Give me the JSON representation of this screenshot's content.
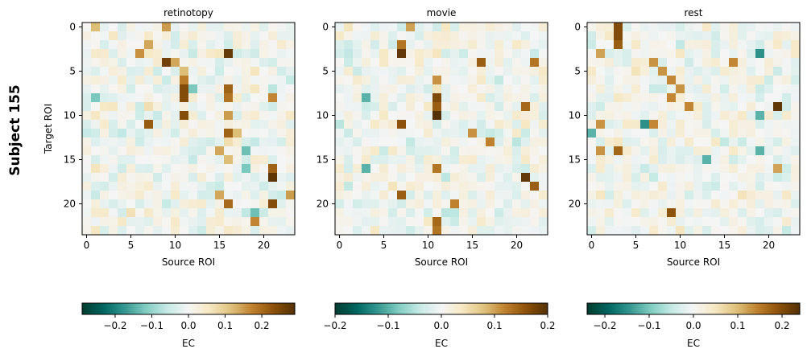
{
  "figure": {
    "row_label": "Subject 155"
  },
  "chart_data": [
    {
      "type": "heatmap",
      "title": "retinotopy",
      "xlabel": "Source ROI",
      "ylabel": "Target ROI",
      "n_rois": 24,
      "x_ticks": [
        0,
        5,
        10,
        15,
        20
      ],
      "y_ticks": [
        0,
        5,
        10,
        15,
        20
      ],
      "colorbar": {
        "label": "EC",
        "vmin": -0.29,
        "vmax": 0.29,
        "ticks": [
          -0.2,
          -0.1,
          0.0,
          0.1,
          0.2
        ],
        "tick_labels": [
          "−0.2",
          "−0.1",
          "0.0",
          "0.1",
          "0.2"
        ]
      },
      "cmap": "BrBG_r",
      "strong_cells": [
        {
          "row": 0,
          "col": 1,
          "value": 0.12
        },
        {
          "row": 0,
          "col": 9,
          "value": 0.15
        },
        {
          "row": 2,
          "col": 7,
          "value": 0.14
        },
        {
          "row": 3,
          "col": 6,
          "value": 0.16
        },
        {
          "row": 3,
          "col": 16,
          "value": 0.27
        },
        {
          "row": 4,
          "col": 9,
          "value": 0.26
        },
        {
          "row": 4,
          "col": 10,
          "value": 0.14
        },
        {
          "row": 5,
          "col": 11,
          "value": 0.12
        },
        {
          "row": 6,
          "col": 11,
          "value": 0.18
        },
        {
          "row": 7,
          "col": 11,
          "value": 0.24
        },
        {
          "row": 7,
          "col": 16,
          "value": 0.21
        },
        {
          "row": 8,
          "col": 11,
          "value": 0.24
        },
        {
          "row": 8,
          "col": 16,
          "value": 0.19
        },
        {
          "row": 8,
          "col": 21,
          "value": 0.17
        },
        {
          "row": 10,
          "col": 11,
          "value": 0.24
        },
        {
          "row": 10,
          "col": 16,
          "value": 0.15
        },
        {
          "row": 11,
          "col": 7,
          "value": 0.22
        },
        {
          "row": 12,
          "col": 16,
          "value": 0.21
        },
        {
          "row": 12,
          "col": 17,
          "value": 0.12
        },
        {
          "row": 14,
          "col": 15,
          "value": 0.14
        },
        {
          "row": 15,
          "col": 16,
          "value": 0.12
        },
        {
          "row": 16,
          "col": 21,
          "value": 0.21
        },
        {
          "row": 17,
          "col": 21,
          "value": 0.28
        },
        {
          "row": 19,
          "col": 15,
          "value": 0.14
        },
        {
          "row": 19,
          "col": 23,
          "value": 0.15
        },
        {
          "row": 20,
          "col": 16,
          "value": 0.2
        },
        {
          "row": 20,
          "col": 21,
          "value": 0.24
        },
        {
          "row": 22,
          "col": 19,
          "value": 0.17
        },
        {
          "row": 14,
          "col": 18,
          "value": -0.13
        },
        {
          "row": 16,
          "col": 18,
          "value": -0.12
        },
        {
          "row": 21,
          "col": 19,
          "value": -0.13
        },
        {
          "row": 8,
          "col": 1,
          "value": -0.12
        },
        {
          "row": 7,
          "col": 12,
          "value": -0.12
        }
      ],
      "seed": 155
    },
    {
      "type": "heatmap",
      "title": "movie",
      "xlabel": "Source ROI",
      "ylabel": "",
      "n_rois": 24,
      "x_ticks": [
        0,
        5,
        10,
        15,
        20
      ],
      "y_ticks": [
        0,
        5,
        10,
        15,
        20
      ],
      "colorbar": {
        "label": "EC",
        "vmin": -0.2,
        "vmax": 0.2,
        "ticks": [
          -0.2,
          -0.1,
          0.0,
          0.1,
          0.2
        ],
        "tick_labels": [
          "−0.2",
          "−0.1",
          "0.0",
          "0.1",
          "0.2"
        ]
      },
      "cmap": "BrBG_r",
      "strong_cells": [
        {
          "row": 0,
          "col": 8,
          "value": 0.1
        },
        {
          "row": 2,
          "col": 7,
          "value": 0.13
        },
        {
          "row": 3,
          "col": 7,
          "value": 0.19
        },
        {
          "row": 4,
          "col": 16,
          "value": 0.15
        },
        {
          "row": 4,
          "col": 22,
          "value": 0.13
        },
        {
          "row": 6,
          "col": 11,
          "value": 0.11
        },
        {
          "row": 8,
          "col": 11,
          "value": 0.17
        },
        {
          "row": 9,
          "col": 11,
          "value": 0.15
        },
        {
          "row": 9,
          "col": 21,
          "value": 0.14
        },
        {
          "row": 10,
          "col": 11,
          "value": 0.2
        },
        {
          "row": 11,
          "col": 7,
          "value": 0.16
        },
        {
          "row": 12,
          "col": 15,
          "value": 0.11
        },
        {
          "row": 13,
          "col": 17,
          "value": 0.12
        },
        {
          "row": 16,
          "col": 11,
          "value": 0.13
        },
        {
          "row": 17,
          "col": 21,
          "value": 0.19
        },
        {
          "row": 18,
          "col": 22,
          "value": 0.15
        },
        {
          "row": 19,
          "col": 7,
          "value": 0.15
        },
        {
          "row": 20,
          "col": 13,
          "value": 0.12
        },
        {
          "row": 22,
          "col": 11,
          "value": 0.14
        },
        {
          "row": 23,
          "col": 11,
          "value": 0.13
        },
        {
          "row": 8,
          "col": 3,
          "value": -0.1
        },
        {
          "row": 16,
          "col": 3,
          "value": -0.1
        }
      ],
      "seed": 277
    },
    {
      "type": "heatmap",
      "title": "rest",
      "xlabel": "Source ROI",
      "ylabel": "",
      "n_rois": 24,
      "x_ticks": [
        0,
        5,
        10,
        15,
        20
      ],
      "y_ticks": [
        0,
        5,
        10,
        15,
        20
      ],
      "colorbar": {
        "label": "EC",
        "vmin": -0.24,
        "vmax": 0.24,
        "ticks": [
          -0.2,
          -0.1,
          0.0,
          0.1,
          0.2
        ],
        "tick_labels": [
          "−0.2",
          "−0.1",
          "0.0",
          "0.1",
          "0.2"
        ]
      },
      "cmap": "BrBG_r",
      "strong_cells": [
        {
          "row": 0,
          "col": 3,
          "value": 0.2
        },
        {
          "row": 1,
          "col": 3,
          "value": 0.2
        },
        {
          "row": 2,
          "col": 3,
          "value": 0.18
        },
        {
          "row": 3,
          "col": 1,
          "value": 0.12
        },
        {
          "row": 4,
          "col": 7,
          "value": 0.13
        },
        {
          "row": 4,
          "col": 16,
          "value": 0.14
        },
        {
          "row": 5,
          "col": 8,
          "value": 0.13
        },
        {
          "row": 6,
          "col": 9,
          "value": 0.14
        },
        {
          "row": 7,
          "col": 10,
          "value": 0.13
        },
        {
          "row": 8,
          "col": 9,
          "value": 0.14
        },
        {
          "row": 9,
          "col": 11,
          "value": 0.14
        },
        {
          "row": 9,
          "col": 21,
          "value": 0.23
        },
        {
          "row": 11,
          "col": 7,
          "value": 0.14
        },
        {
          "row": 11,
          "col": 1,
          "value": 0.13
        },
        {
          "row": 14,
          "col": 1,
          "value": 0.13
        },
        {
          "row": 14,
          "col": 3,
          "value": 0.17
        },
        {
          "row": 16,
          "col": 21,
          "value": 0.12
        },
        {
          "row": 21,
          "col": 9,
          "value": 0.19
        },
        {
          "row": 3,
          "col": 19,
          "value": -0.15
        },
        {
          "row": 11,
          "col": 6,
          "value": -0.15
        },
        {
          "row": 10,
          "col": 19,
          "value": -0.12
        },
        {
          "row": 14,
          "col": 19,
          "value": -0.12
        },
        {
          "row": 15,
          "col": 13,
          "value": -0.12
        },
        {
          "row": 12,
          "col": 0,
          "value": -0.12
        }
      ],
      "seed": 391
    }
  ]
}
